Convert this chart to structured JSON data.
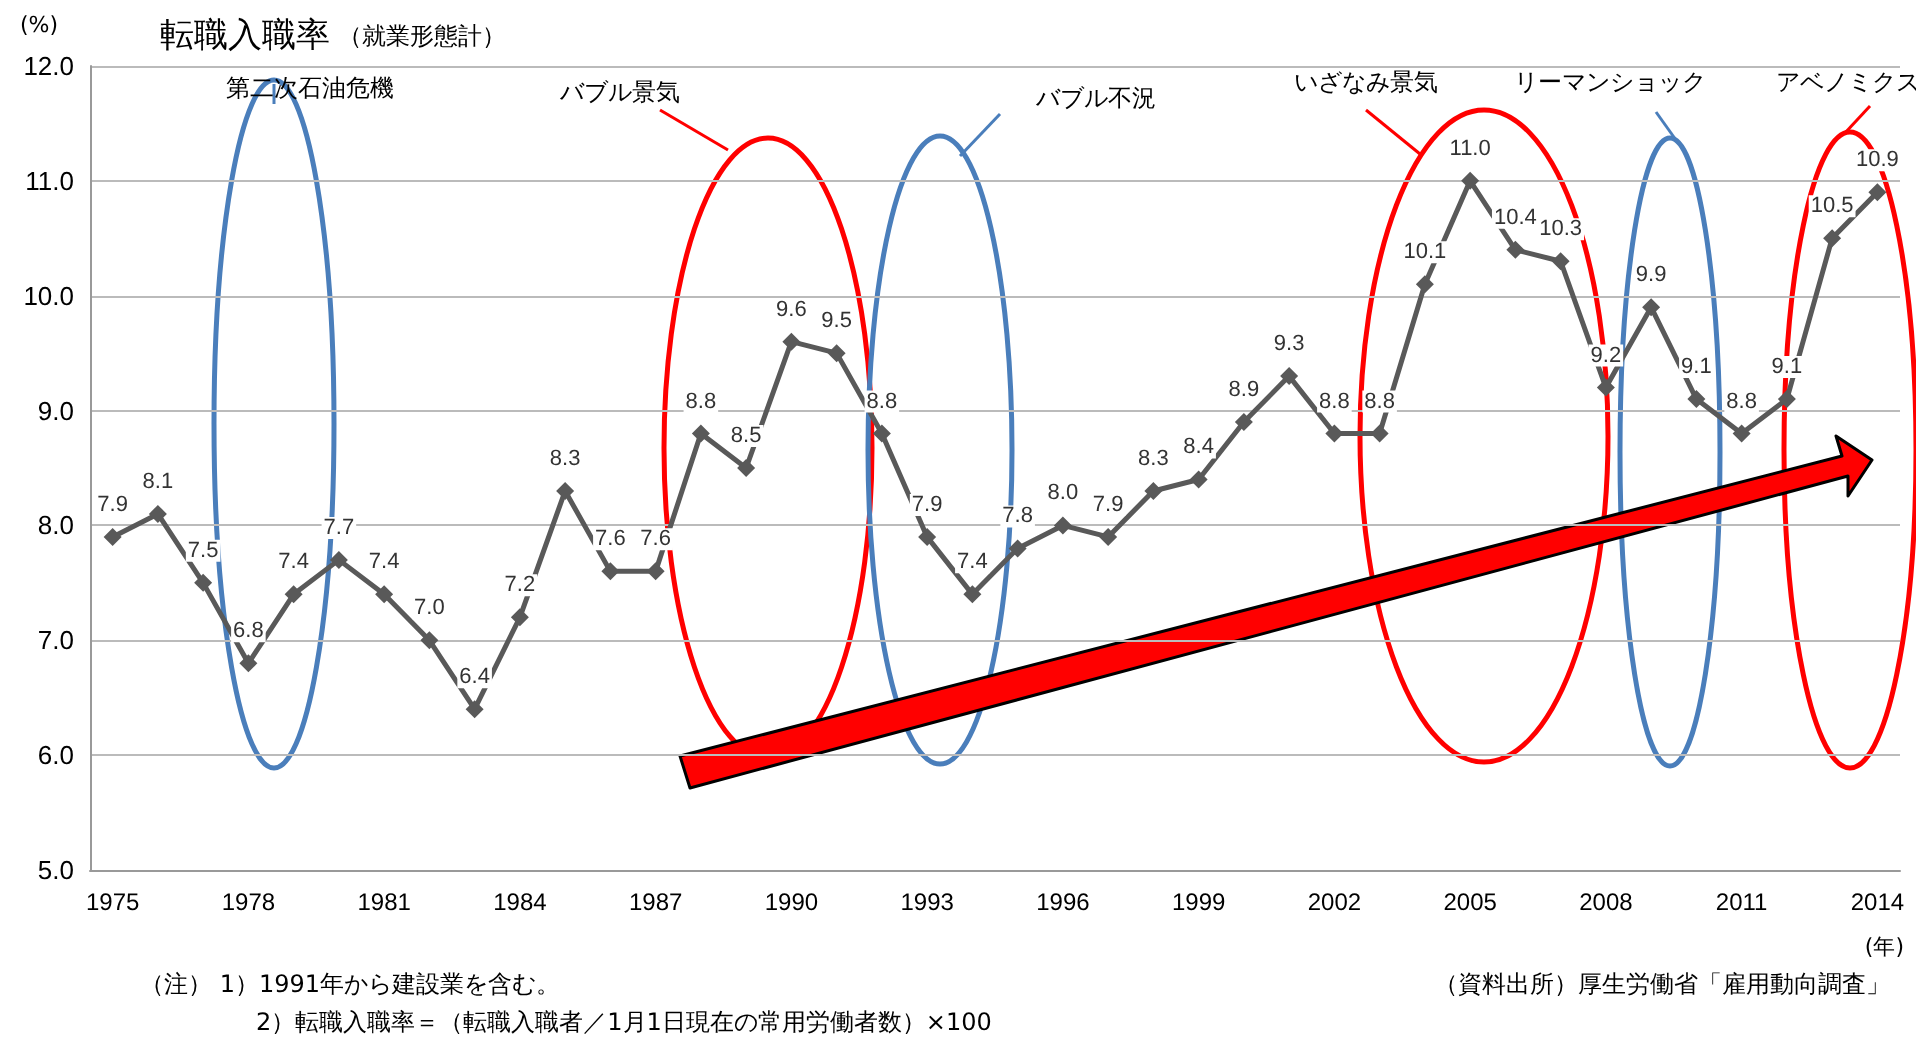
{
  "chart_data": {
    "type": "line",
    "title": "転職入職率",
    "subtitle": "（就業形態計）",
    "ylabel": "(%)",
    "xlabel": "(年)",
    "categories": [
      "1975",
      null,
      null,
      "1978",
      null,
      null,
      "1981",
      null,
      null,
      "1984",
      null,
      null,
      "1987",
      null,
      null,
      "1990",
      null,
      null,
      "1993",
      null,
      null,
      "1996",
      null,
      null,
      "1999",
      null,
      null,
      "2002",
      null,
      null,
      "2005",
      null,
      null,
      "2008",
      null,
      null,
      "2011",
      null,
      null,
      "2014"
    ],
    "series": [
      {
        "color": "#595959",
        "values": [
          7.9,
          8.1,
          7.5,
          6.8,
          7.4,
          7.7,
          7.4,
          7.0,
          6.4,
          7.2,
          8.3,
          7.6,
          7.6,
          8.8,
          8.5,
          9.6,
          9.5,
          8.8,
          7.9,
          7.4,
          7.8,
          8.0,
          7.9,
          8.3,
          8.4,
          8.9,
          9.3,
          8.8,
          8.8,
          10.1,
          11.0,
          10.4,
          10.3,
          9.2,
          9.9,
          9.1,
          8.8,
          9.1,
          10.5,
          10.9
        ]
      }
    ],
    "ylim": [
      5,
      12
    ],
    "yticks": [
      {
        "value": 5,
        "label": "5.0"
      },
      {
        "value": 6,
        "label": "6.0"
      },
      {
        "value": 7,
        "label": "7.0"
      },
      {
        "value": 8,
        "label": "8.0"
      },
      {
        "value": 9,
        "label": "9.0"
      },
      {
        "value": 10,
        "label": "10.0"
      },
      {
        "value": 11,
        "label": "11.0"
      },
      {
        "value": 12,
        "label": "12.0"
      }
    ],
    "grid": "y",
    "marker": "diamond",
    "line_style": "solid",
    "value_labels": [
      "7.9",
      "8.1",
      "7.5",
      "6.8",
      "7.4",
      "7.7",
      "7.4",
      "7.0",
      "6.4",
      "7.2",
      "8.3",
      "7.6",
      "7.6",
      "8.8",
      "8.5",
      "9.6",
      "9.5",
      "8.8",
      "7.9",
      "7.4",
      "7.8",
      "8.0",
      "7.9",
      "8.3",
      "8.4",
      "8.9",
      "9.3",
      "8.8",
      "8.8",
      "10.1",
      "11.0",
      "10.4",
      "10.3",
      "9.2",
      "9.9",
      "9.1",
      "8.8",
      "9.1",
      "10.5",
      "10.9"
    ],
    "annotations": [
      "第二次石油危機",
      "バブル景気",
      "バブル不況",
      "いざなみ景気",
      "リーマンショック",
      "アベノミクス",
      "（注） 1）1991年から建設業を含む。",
      "2）転職入職率＝（転職入職者／1月1日現在の常用労働者数）×100",
      "（資料出所）厚生労働省「雇用動向調査」"
    ]
  }
}
